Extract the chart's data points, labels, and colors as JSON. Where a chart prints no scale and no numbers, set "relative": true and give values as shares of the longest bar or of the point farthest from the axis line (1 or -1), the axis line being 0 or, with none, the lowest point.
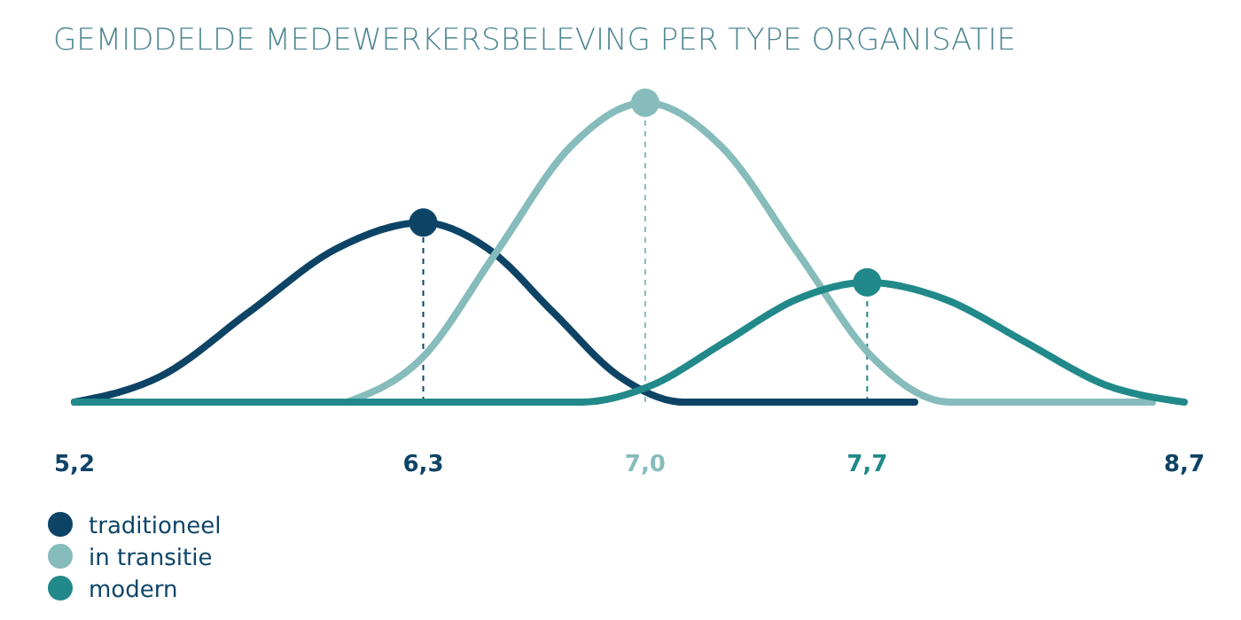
{
  "chart_data": {
    "type": "line",
    "title": "GEMIDDELDE MEDEWERKERSBELEVING PER TYPE ORGANISATIE",
    "relative": true,
    "xlim": [
      5.2,
      8.7
    ],
    "xticks": [
      {
        "value": 5.2,
        "label": "5,2"
      },
      {
        "value": 6.3,
        "label": "6,3"
      },
      {
        "value": 7.0,
        "label": "7,0"
      },
      {
        "value": 7.7,
        "label": "7,7"
      },
      {
        "value": 8.7,
        "label": "8,7"
      }
    ],
    "series": [
      {
        "name": "traditioneel",
        "color": "#0d4466",
        "x": [
          5.2,
          5.475,
          5.75,
          6.025,
          6.3,
          6.505,
          6.71,
          6.915,
          7.12,
          7.85
        ],
        "values": [
          0,
          0.088,
          0.3,
          0.512,
          0.6,
          0.512,
          0.3,
          0.088,
          0,
          0
        ]
      },
      {
        "name": "in transitie",
        "color": "#86bcbb",
        "x": [
          6.06,
          6.295,
          6.53,
          6.765,
          7.0,
          7.24,
          7.48,
          7.72,
          7.96,
          8.6
        ],
        "values": [
          0,
          0.146,
          0.5,
          0.854,
          1,
          0.854,
          0.5,
          0.146,
          0,
          0
        ]
      },
      {
        "name": "modern",
        "color": "#22898a",
        "x": [
          5.2,
          6.8,
          7.025,
          7.25,
          7.475,
          7.7,
          7.95,
          8.2,
          8.45,
          8.7
        ],
        "values": [
          0,
          0,
          0.058,
          0.2,
          0.342,
          0.4,
          0.342,
          0.2,
          0.058,
          0
        ]
      },
      {
        "type": "scatter",
        "color": "#0d4466",
        "x": [
          6.3
        ],
        "values": [
          0.6
        ]
      },
      {
        "type": "scatter",
        "color": "#86bcbb",
        "x": [
          7.0
        ],
        "values": [
          1
        ]
      },
      {
        "type": "scatter",
        "color": "#22898a",
        "x": [
          7.7
        ],
        "values": [
          0.4
        ]
      }
    ],
    "ref_lines": [
      {
        "axis": "x",
        "value": 6.3,
        "color": "#0d4466",
        "line_style": "dashed"
      },
      {
        "axis": "x",
        "value": 7.0,
        "color": "#86bcbb",
        "line_style": "dashed"
      },
      {
        "axis": "x",
        "value": 7.7,
        "color": "#22898a",
        "line_style": "dashed"
      }
    ],
    "legend": "bottom left"
  }
}
